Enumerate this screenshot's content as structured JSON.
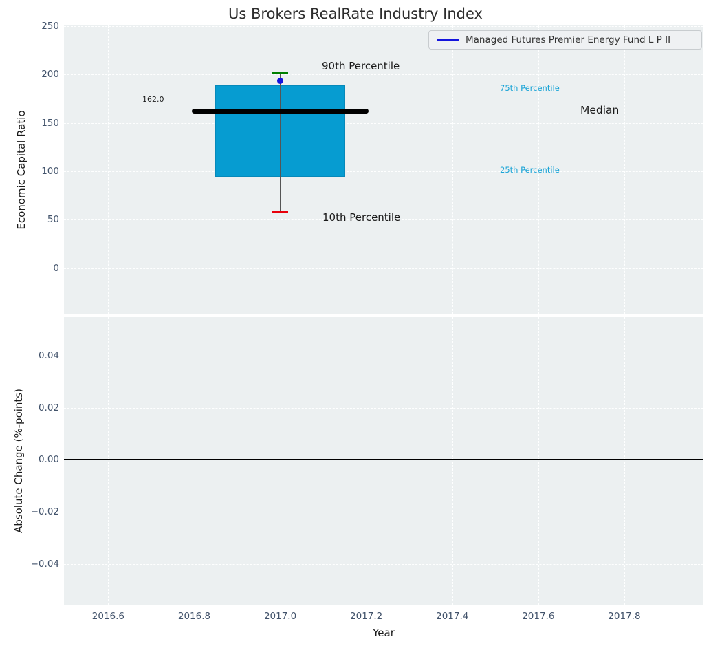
{
  "title": "Us Brokers RealRate Industry Index",
  "legend": {
    "label": "Managed Futures Premier Energy Fund L P II"
  },
  "annotations": {
    "p90": "90th Percentile",
    "p75": "75th Percentile",
    "median": "Median",
    "p25": "25th Percentile",
    "p10": "10th Percentile",
    "median_value": "162.0"
  },
  "colors": {
    "box_fill": "#069cd1",
    "box_edge": "#0689ba",
    "median_line": "#000000",
    "whisker": "#555555",
    "cap_upper": "#008000",
    "cap_lower": "#e8000b",
    "fund_marker": "#1414dd",
    "legend_line": "#1414dd",
    "cyan_label": "#18a3d6",
    "axes_bg": "#ecf0f1",
    "grid": "#ffffff",
    "tick_text": "#42536b",
    "zero_line": "#000000"
  },
  "chart_data": [
    {
      "type": "box",
      "title": "Us Brokers RealRate Industry Index",
      "xlabel": "Year",
      "ylabel": "Economic Capital Ratio",
      "xlim": [
        2016.497,
        2017.984
      ],
      "ylim": [
        -47.6,
        250.4
      ],
      "xticks": [
        2016.6,
        2016.8,
        2017.0,
        2017.2,
        2017.4,
        2017.6,
        2017.8
      ],
      "xtick_labels": [
        "2016.6",
        "2016.8",
        "2017.0",
        "2017.2",
        "2017.4",
        "2017.6",
        "2017.8"
      ],
      "yticks": [
        0,
        50,
        100,
        150,
        200,
        250
      ],
      "ytick_labels": [
        "0",
        "50",
        "100",
        "150",
        "200",
        "250"
      ],
      "grid": "white dashed, on",
      "legend_entries": [
        "Managed Futures Premier Energy Fund L P II"
      ],
      "legend_position": "upper right",
      "box": {
        "x": 2017.0,
        "p10": 58,
        "q25": 94,
        "median": 162,
        "q75": 189,
        "p90": 201,
        "fund_point": 193,
        "median_label": "162.0",
        "box_halfwidth": 0.151,
        "median_halfwidth": 0.205,
        "cap_halfwidth": 0.019
      },
      "annotations": [
        "90th Percentile",
        "75th Percentile",
        "Median",
        "25th Percentile",
        "10th Percentile",
        "162.0"
      ]
    },
    {
      "type": "line",
      "xlabel": "Year",
      "ylabel": "Absolute Change (%-points)",
      "ylim": [
        -0.0556,
        0.0547
      ],
      "yticks": [
        0.04,
        0.02,
        0.0,
        -0.02,
        -0.04
      ],
      "ytick_labels": [
        "0.04",
        "0.02",
        "0.00",
        "−0.02",
        "−0.04"
      ],
      "zero_line": 0.0,
      "series": []
    }
  ]
}
